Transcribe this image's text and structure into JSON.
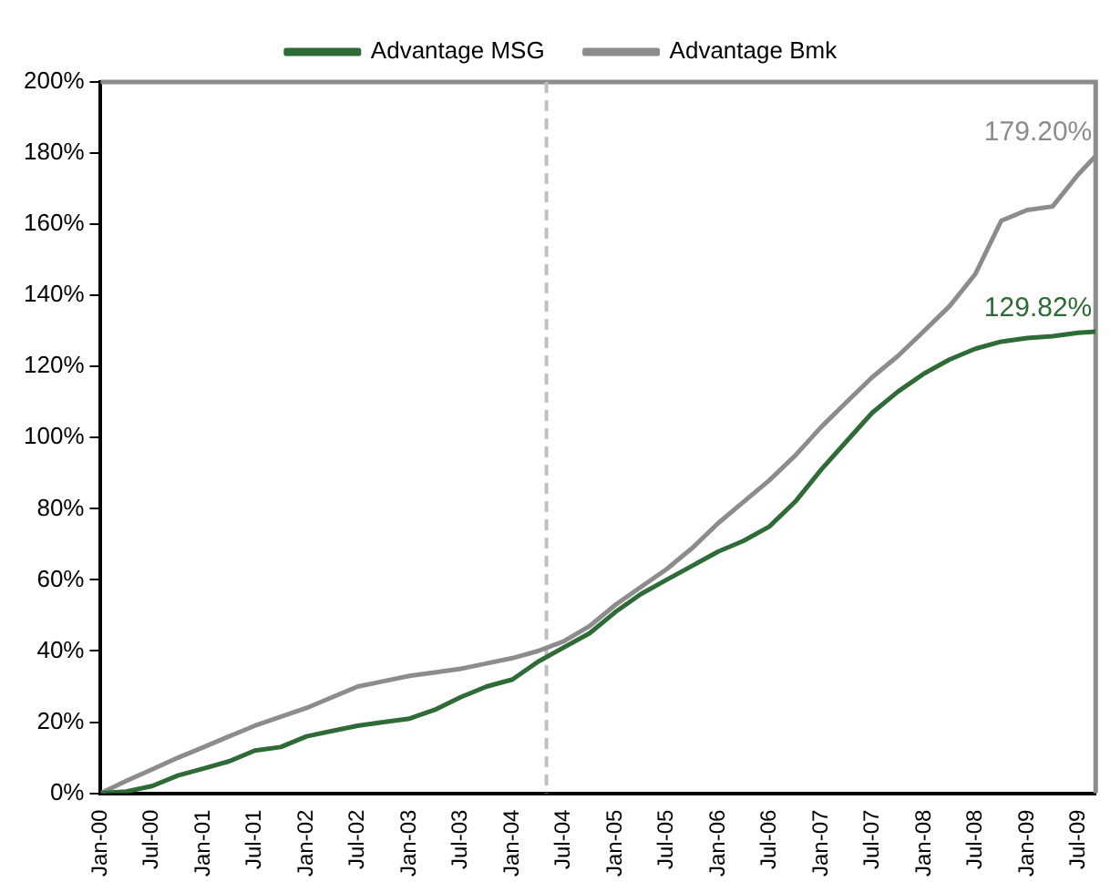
{
  "chart_data": {
    "type": "line",
    "x": [
      "2000-01",
      "2000-04",
      "2000-07",
      "2000-10",
      "2001-01",
      "2001-04",
      "2001-07",
      "2001-10",
      "2002-01",
      "2002-04",
      "2002-07",
      "2002-10",
      "2003-01",
      "2003-04",
      "2003-07",
      "2003-10",
      "2004-01",
      "2004-04",
      "2004-07",
      "2004-10",
      "2005-01",
      "2005-04",
      "2005-07",
      "2005-10",
      "2006-01",
      "2006-04",
      "2006-07",
      "2006-10",
      "2007-01",
      "2007-04",
      "2007-07",
      "2007-10",
      "2008-01",
      "2008-04",
      "2008-07",
      "2008-10",
      "2009-01",
      "2009-04",
      "2009-07",
      "2009-09"
    ],
    "series": [
      {
        "name": "Advantage MSG",
        "color": "#2e6b37",
        "values": [
          0,
          0.5,
          2,
          5,
          7,
          9,
          12,
          13,
          16,
          17.5,
          19,
          20,
          21,
          23.5,
          27,
          30,
          32,
          37,
          41,
          45,
          51,
          56,
          60,
          64,
          68,
          71,
          75,
          82,
          91,
          99,
          107,
          113,
          118,
          122,
          125,
          127,
          128,
          128.5,
          129.5,
          129.82
        ],
        "value_labels": [
          null,
          null,
          null,
          null,
          null,
          null,
          null,
          null,
          null,
          null,
          null,
          null,
          null,
          null,
          null,
          null,
          null,
          null,
          null,
          null,
          null,
          null,
          null,
          null,
          null,
          null,
          null,
          null,
          null,
          null,
          null,
          null,
          null,
          null,
          null,
          null,
          null,
          null,
          null,
          "129.82%"
        ]
      },
      {
        "name": "Advantage Bmk",
        "color": "#8c8c8c",
        "values": [
          0,
          3.5,
          6.7,
          10,
          13,
          16,
          19,
          21.5,
          24,
          27,
          30,
          31.5,
          33,
          34,
          35,
          36.5,
          38,
          40,
          42.7,
          47,
          53,
          58,
          63,
          69,
          76,
          82,
          88,
          95,
          103,
          110,
          117,
          123,
          130,
          137,
          146,
          161,
          164,
          165,
          174,
          179.2
        ],
        "value_labels": [
          null,
          null,
          null,
          null,
          null,
          null,
          null,
          null,
          null,
          null,
          null,
          null,
          null,
          null,
          null,
          null,
          null,
          null,
          null,
          null,
          null,
          null,
          null,
          null,
          null,
          null,
          null,
          null,
          null,
          null,
          null,
          null,
          null,
          null,
          null,
          null,
          null,
          null,
          null,
          "179.20%"
        ]
      }
    ],
    "xlim": [
      "2000-01",
      "2009-09"
    ],
    "xticks": [
      {
        "value": "2000-01",
        "label": "Jan-00"
      },
      {
        "value": "2000-07",
        "label": "Jul-00"
      },
      {
        "value": "2001-01",
        "label": "Jan-01"
      },
      {
        "value": "2001-07",
        "label": "Jul-01"
      },
      {
        "value": "2002-01",
        "label": "Jan-02"
      },
      {
        "value": "2002-07",
        "label": "Jul-02"
      },
      {
        "value": "2003-01",
        "label": "Jan-03"
      },
      {
        "value": "2003-07",
        "label": "Jul-03"
      },
      {
        "value": "2004-01",
        "label": "Jan-04"
      },
      {
        "value": "2004-07",
        "label": "Jul-04"
      },
      {
        "value": "2005-01",
        "label": "Jan-05"
      },
      {
        "value": "2005-07",
        "label": "Jul-05"
      },
      {
        "value": "2006-01",
        "label": "Jan-06"
      },
      {
        "value": "2006-07",
        "label": "Jul-06"
      },
      {
        "value": "2007-01",
        "label": "Jan-07"
      },
      {
        "value": "2007-07",
        "label": "Jul-07"
      },
      {
        "value": "2008-01",
        "label": "Jan-08"
      },
      {
        "value": "2008-07",
        "label": "Jul-08"
      },
      {
        "value": "2009-01",
        "label": "Jan-09"
      },
      {
        "value": "2009-07",
        "label": "Jul-09"
      }
    ],
    "ylim": [
      0,
      200
    ],
    "yticks": [
      {
        "value": 0,
        "label": "0%"
      },
      {
        "value": 20,
        "label": "20%"
      },
      {
        "value": 40,
        "label": "40%"
      },
      {
        "value": 60,
        "label": "60%"
      },
      {
        "value": 80,
        "label": "80%"
      },
      {
        "value": 100,
        "label": "100%"
      },
      {
        "value": 120,
        "label": "120%"
      },
      {
        "value": 140,
        "label": "140%"
      },
      {
        "value": 160,
        "label": "160%"
      },
      {
        "value": 180,
        "label": "180%"
      },
      {
        "value": 200,
        "label": "200%"
      }
    ],
    "ref_lines": [
      {
        "axis": "x",
        "value": "2004-05",
        "color": "#c0c0c0",
        "line_style": "dashed"
      }
    ],
    "grid": false,
    "legend": "top",
    "marker": "none",
    "line_style": "solid"
  }
}
